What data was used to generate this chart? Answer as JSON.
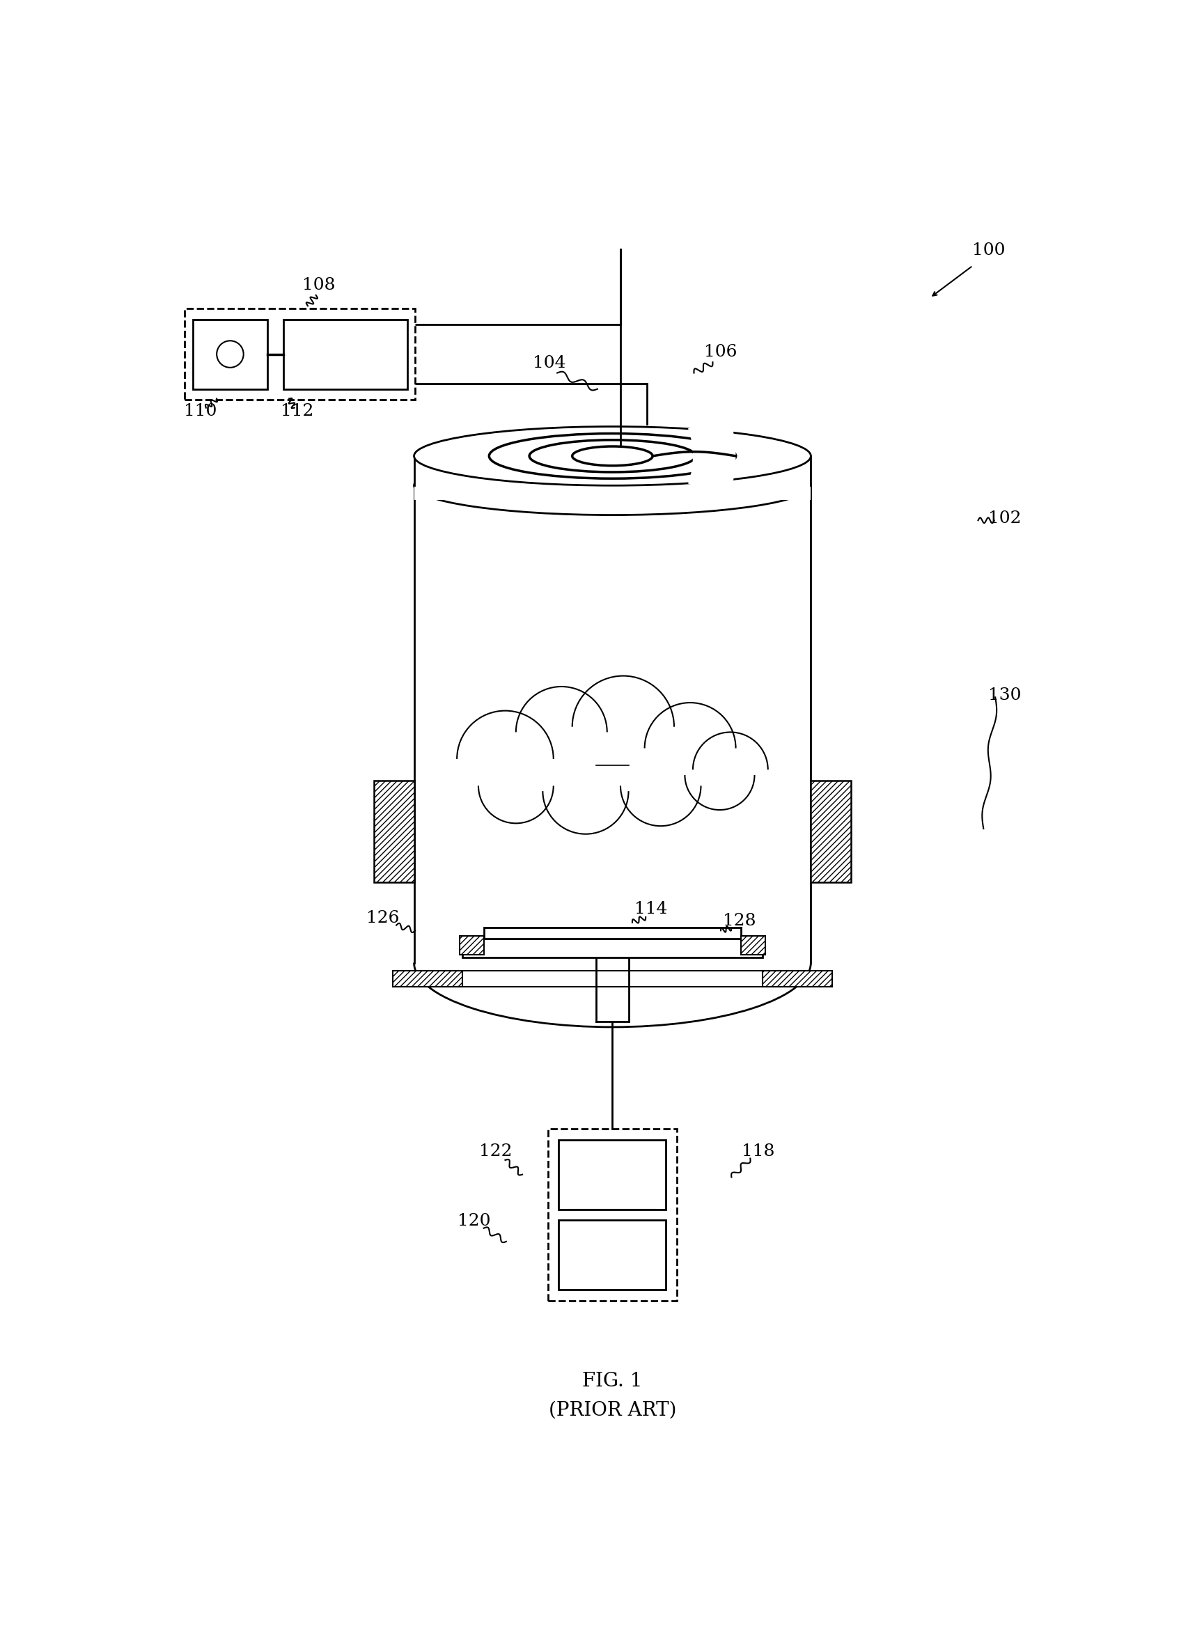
{
  "title": "FIG. 1\n(PRIOR ART)",
  "background_color": "#ffffff",
  "label_fontsize": 18,
  "title_fontsize": 20,
  "fig_width": 17.16,
  "fig_height": 23.58
}
